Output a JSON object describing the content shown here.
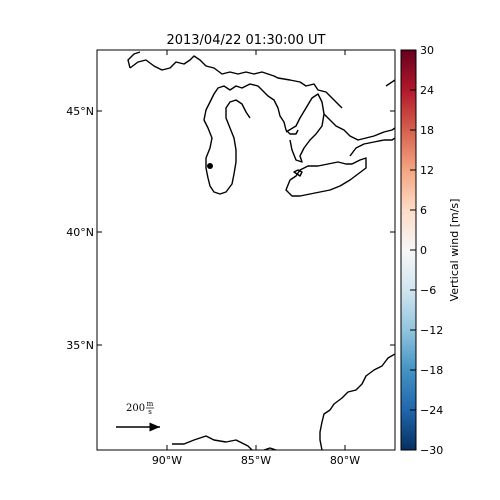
{
  "title": "2013/04/22 01:30:00 UT",
  "y_tick_labels": [
    "45°N",
    "40°N",
    "35°N"
  ],
  "x_tick_labels": [
    "90°W",
    "85°W",
    "80°W"
  ],
  "colorbar": {
    "label": "Vertical wind [m/s]",
    "tick_labels": [
      "30",
      "24",
      "18",
      "12",
      "6",
      "0",
      "−6",
      "−12",
      "−18",
      "−24",
      "−30"
    ],
    "top_color": "#67001f",
    "mid_color": "#f7f7f7",
    "bottom_color": "#053061"
  },
  "scale_arrow": {
    "value": "200",
    "unit_numerator": "m",
    "unit_denominator": "s"
  }
}
